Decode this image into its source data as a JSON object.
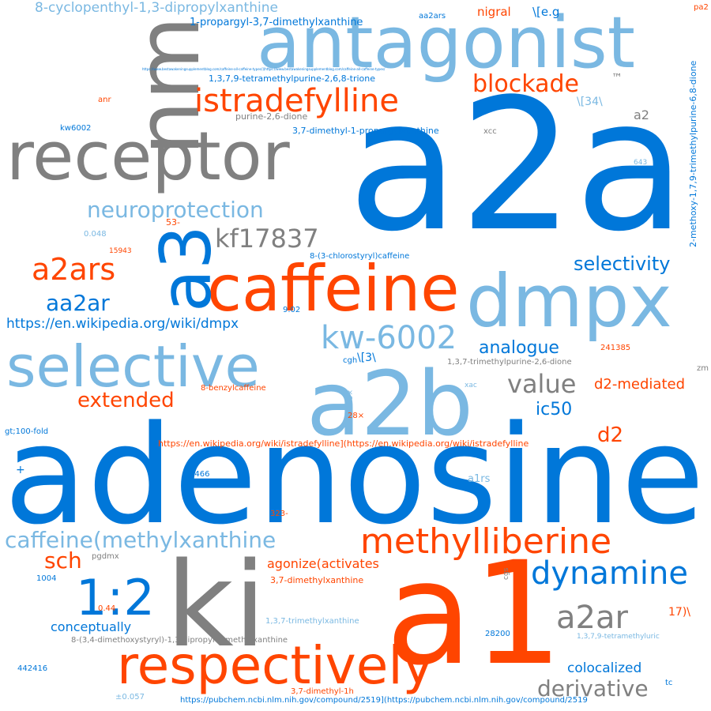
{
  "palette": {
    "blue": "#0077d9",
    "light_blue": "#7ab8e2",
    "orange": "#ff4500",
    "gray": "#808080"
  },
  "words": {
    "adenosine": "adenosine",
    "a2a": "a2a",
    "ki": "ki",
    "a1": "a1",
    "antagonist": "antagonist",
    "nm": "nm",
    "receptor": "receptor",
    "dmpx": "dmpx",
    "a2b": "a2b",
    "caffeine": "caffeine",
    "selective": "selective",
    "a3": "a3",
    "respectively": "respectively",
    "ratio": "1:2",
    "istradefylline": "istradefylline",
    "methylliberine": "methylliberine",
    "kw6002_dash": "kw-6002",
    "dynamine": "dynamine",
    "kf17837": "kf17837",
    "a2ars": "a2ars",
    "blockade": "blockade",
    "neuroprotection": "neuroprotection",
    "a2ar": "a2ar",
    "aa2ar": "aa2ar",
    "caffeine_methylxanthine": "caffeine(methylxanthine",
    "value": "value",
    "derivative": "derivative",
    "extended": "extended",
    "selectivity": "selectivity",
    "sch": "sch",
    "analogue": "analogue",
    "ic50": "ic50",
    "d2": "d2",
    "d2_mediated": "d2-mediated",
    "wiki_dmpx": "https://en.wikipedia.org/wiki/dmpx",
    "cyclopentyl": "8-cyclopenthyl-1,3-dipropylxanthine",
    "propargyl": "1-propargyl-3,7-dimethylxanthine",
    "tetramethylpurine_trione": "1,3,7,9-tetramethylpurine-2,6,8-trione",
    "methoxy": "2-methoxy-1,7,9-trimethylpurine-6,8-dione",
    "dimethyl_propargyl": "3,7-dimethyl-1-propargylxanthine",
    "chlorostyryl": "8-(3-chlorostyryl)caffeine",
    "trimethylpurine": "1,3,7-trimethylpurine-2,6-dione",
    "benzylcaffeine": "8-benzylcaffeine",
    "wiki_istradefylline": "https://en.wikipedia.org/wiki/istradefylline](https://en.wikipedia.org/wiki/istradefylline",
    "agonize": "agonize(activates",
    "dimethylxanthine": "3,7-dimethylxanthine",
    "trimethylxanthine": "1,3,7-trimethylxanthine",
    "dimethoxystyryl": "8-(3,4-dimethoxystyryl)-1,3-dipropyl-7-methylxanthine",
    "conceptually": "conceptually",
    "colocalized": "colocalized",
    "pubchem": "https://pubchem.ncbi.nlm.nih.gov/compound/2519](https://pubchem.ncbi.nlm.nih.gov/compound/2519",
    "tetramethyluric": "1,3,7,9-tetramethyluric",
    "dimethyl_1h": "3,7-dimethyl-1h",
    "nigral": "nigral",
    "eg": "\\[e.g",
    "ref34": "\\[34\\",
    "ref3": "\\[3\\",
    "tm": "™",
    "a2": "a2",
    "aa2ars": "aa2ars",
    "pa2": "pa2",
    "purine_dione": "purine-2,6-dione",
    "xcc": "xcc",
    "kw6002": "kw6002",
    "anr": "anr",
    "n643": "643",
    "n53": "53-",
    "n0048": "0.048",
    "n15943": "15943",
    "n902": "9.02",
    "n241385": "241385",
    "cgh": "cgh",
    "xac": "xac",
    "zm": "zm",
    "n28x": "28×",
    "n15x": "15×",
    "gt100": "gt;100-fold",
    "plus": "+",
    "n2466": "2466",
    "a1rs": "a1rs",
    "n323": "323-",
    "pgdmx": "pgdmx",
    "n1004": "1004",
    "n044": "0.44",
    "cgs": "cgs",
    "n17": "17)\\",
    "n28200": "28200",
    "n442416": "442416",
    "pm0057": "±0.057",
    "tc": "tc",
    "tiny_url": "https://www.bestawakeningsupplementblog.com/caffeine-all-caffeine-types/](https://www.bestawakeningsupplementblog.com/caffeine-all-caffeine-types/"
  }
}
